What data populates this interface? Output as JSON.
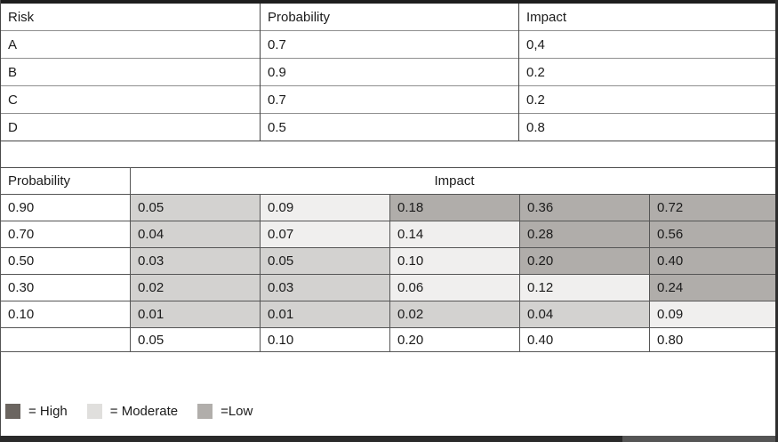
{
  "risk_register": {
    "columns": [
      "Risk",
      "Probability",
      "Impact"
    ],
    "rows": [
      {
        "risk": "A",
        "probability": "0.7",
        "impact": "0,4"
      },
      {
        "risk": "B",
        "probability": "0.9",
        "impact": "0.2"
      },
      {
        "risk": "C",
        "probability": "0.7",
        "impact": "0.2"
      },
      {
        "risk": "D",
        "probability": "0.5",
        "impact": "0.8"
      }
    ]
  },
  "risk_matrix": {
    "probability_header": "Probability",
    "impact_header": "Impact",
    "rows": [
      {
        "probability": "0.90",
        "cells": [
          {
            "value": "0.05",
            "level": "low"
          },
          {
            "value": "0.09",
            "level": "moderate"
          },
          {
            "value": "0.18",
            "level": "high"
          },
          {
            "value": "0.36",
            "level": "high"
          },
          {
            "value": "0.72",
            "level": "high"
          }
        ]
      },
      {
        "probability": "0.70",
        "cells": [
          {
            "value": "0.04",
            "level": "low"
          },
          {
            "value": "0.07",
            "level": "moderate"
          },
          {
            "value": "0.14",
            "level": "moderate"
          },
          {
            "value": "0.28",
            "level": "high"
          },
          {
            "value": "0.56",
            "level": "high"
          }
        ]
      },
      {
        "probability": "0.50",
        "cells": [
          {
            "value": "0.03",
            "level": "low"
          },
          {
            "value": "0.05",
            "level": "low"
          },
          {
            "value": "0.10",
            "level": "moderate"
          },
          {
            "value": "0.20",
            "level": "high"
          },
          {
            "value": "0.40",
            "level": "high"
          }
        ]
      },
      {
        "probability": "0.30",
        "cells": [
          {
            "value": "0.02",
            "level": "low"
          },
          {
            "value": "0.03",
            "level": "low"
          },
          {
            "value": "0.06",
            "level": "moderate"
          },
          {
            "value": "0.12",
            "level": "moderate"
          },
          {
            "value": "0.24",
            "level": "high"
          }
        ]
      },
      {
        "probability": "0.10",
        "cells": [
          {
            "value": "0.01",
            "level": "low"
          },
          {
            "value": "0.01",
            "level": "low"
          },
          {
            "value": "0.02",
            "level": "low"
          },
          {
            "value": "0.04",
            "level": "low"
          },
          {
            "value": "0.09",
            "level": "moderate"
          }
        ]
      }
    ],
    "impact_scale": [
      "0.05",
      "0.10",
      "0.20",
      "0.40",
      "0.80"
    ]
  },
  "legend": {
    "items": [
      {
        "level": "high",
        "label": "= High"
      },
      {
        "level": "moderate",
        "label": "= Moderate"
      },
      {
        "level": "low",
        "label": "=Low"
      }
    ]
  },
  "colors": {
    "cell_high": "#b0adaa",
    "cell_moderate": "#f0efee",
    "cell_low": "#d3d2d0",
    "legend_high": "#6b6560",
    "legend_moderate": "#e0dfdd",
    "legend_low": "#b1aeab"
  }
}
